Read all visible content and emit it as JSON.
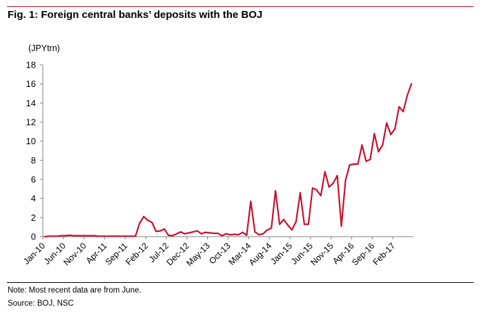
{
  "title": "Fig. 1: Foreign central banks’ deposits with the BOJ",
  "note": "Note: Most recent data are from June.",
  "source": "Source: BOJ, NSC",
  "colors": {
    "accent": "#c8102e",
    "series": "#c8102e",
    "axis": "#808080"
  },
  "chart_data": {
    "type": "line",
    "title": "",
    "unit_label": "(JPYtrn)",
    "xlabel": "",
    "ylabel": "",
    "ylim": [
      0,
      18
    ],
    "y_ticks": [
      0,
      2,
      4,
      6,
      8,
      10,
      12,
      14,
      16,
      18
    ],
    "x_start": "2010-01",
    "x_end": "2017-06",
    "x_tick_labels": [
      "Jan-10",
      "Jun-10",
      "Nov-10",
      "Apr-11",
      "Sep-11",
      "Feb-12",
      "Jul-12",
      "Dec-12",
      "May-13",
      "Oct-13",
      "Mar-14",
      "Aug-14",
      "Jan-15",
      "Jun-15",
      "Nov-15",
      "Apr-16",
      "Sep-16",
      "Feb-17"
    ],
    "grid": false,
    "legend": "none",
    "series": [
      {
        "values": [
          0.0,
          0.05,
          0.05,
          0.05,
          0.1,
          0.1,
          0.15,
          0.1,
          0.1,
          0.1,
          0.1,
          0.1,
          0.1,
          0.05,
          0.05,
          0.05,
          0.05,
          0.05,
          0.05,
          0.05,
          0.05,
          0.05,
          0.05,
          1.4,
          2.1,
          1.7,
          1.5,
          0.55,
          0.6,
          0.8,
          0.15,
          0.1,
          0.3,
          0.5,
          0.3,
          0.4,
          0.5,
          0.6,
          0.3,
          0.45,
          0.4,
          0.35,
          0.35,
          0.1,
          0.3,
          0.2,
          0.25,
          0.2,
          0.45,
          0.15,
          3.7,
          0.5,
          0.2,
          0.3,
          0.7,
          0.9,
          4.8,
          1.3,
          1.8,
          1.2,
          0.7,
          1.6,
          4.6,
          1.3,
          1.3,
          5.1,
          4.9,
          4.3,
          6.8,
          5.2,
          5.6,
          6.4,
          1.1,
          5.9,
          7.5,
          7.6,
          7.6,
          9.6,
          7.9,
          8.1,
          10.8,
          8.9,
          9.6,
          11.9,
          10.7,
          11.3,
          13.6,
          13.1,
          14.8,
          16.0
        ]
      }
    ]
  }
}
